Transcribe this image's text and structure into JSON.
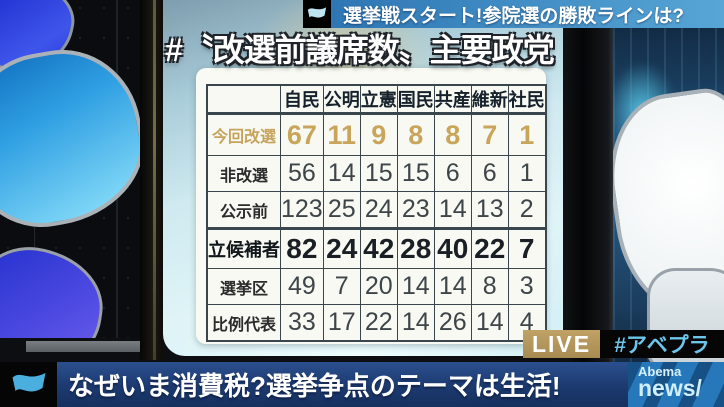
{
  "top_banner": {
    "text": "選挙戦スタート!参院選の勝敗ラインは?"
  },
  "board": {
    "title": "#〝改選前議席数〟主要政党"
  },
  "table": {
    "columns": [
      "自民",
      "公明",
      "立憲",
      "国民",
      "共産",
      "維新",
      "社民"
    ],
    "rows": [
      {
        "label": "今回改選",
        "style": "gold",
        "values": [
          67,
          11,
          9,
          8,
          8,
          7,
          1
        ]
      },
      {
        "label": "非改選",
        "style": "plain",
        "values": [
          56,
          14,
          15,
          15,
          6,
          6,
          1
        ]
      },
      {
        "label": "公示前",
        "style": "plain",
        "values": [
          123,
          25,
          24,
          23,
          14,
          13,
          2
        ]
      },
      {
        "label": "立候補者",
        "style": "bold",
        "values": [
          82,
          24,
          42,
          28,
          40,
          22,
          7
        ]
      },
      {
        "label": "選挙区",
        "style": "plain",
        "values": [
          49,
          7,
          20,
          14,
          14,
          8,
          3
        ]
      },
      {
        "label": "比例代表",
        "style": "plain",
        "values": [
          33,
          17,
          22,
          14,
          26,
          14,
          4
        ]
      }
    ]
  },
  "chart_data": {
    "type": "table",
    "title": "#〝改選前議席数〟主要政党",
    "categories": [
      "自民",
      "公明",
      "立憲",
      "国民",
      "共産",
      "維新",
      "社民"
    ],
    "series": [
      {
        "name": "今回改選",
        "values": [
          67,
          11,
          9,
          8,
          8,
          7,
          1
        ]
      },
      {
        "name": "非改選",
        "values": [
          56,
          14,
          15,
          15,
          6,
          6,
          1
        ]
      },
      {
        "name": "公示前",
        "values": [
          123,
          25,
          24,
          23,
          14,
          13,
          2
        ]
      },
      {
        "name": "立候補者",
        "values": [
          82,
          24,
          42,
          28,
          40,
          22,
          7
        ]
      },
      {
        "name": "選挙区",
        "values": [
          49,
          7,
          20,
          14,
          14,
          8,
          3
        ]
      },
      {
        "name": "比例代表",
        "values": [
          33,
          17,
          22,
          14,
          26,
          14,
          4
        ]
      }
    ]
  },
  "live_badge": {
    "label": "LIVE"
  },
  "hashtag": {
    "label": "#アベプラ"
  },
  "bottom_banner": {
    "text": "なぜいま消費税?選挙争点のテーマは生活!"
  },
  "logo": {
    "line1": "Abema",
    "line2": "news/"
  },
  "colors": {
    "accent_gold_numbers": "#c9a55c",
    "live_badge_bg": "#ab8f58",
    "top_banner_blue": "#3d85c6",
    "bottom_banner_navy": "#1c3a70",
    "hashtag_blue": "#6cc5ea",
    "logo_bg_blue": "#2678ba",
    "flag_blue": "#4aaede",
    "table_border": "#39464e",
    "table_bg": "#f7f9f2"
  }
}
